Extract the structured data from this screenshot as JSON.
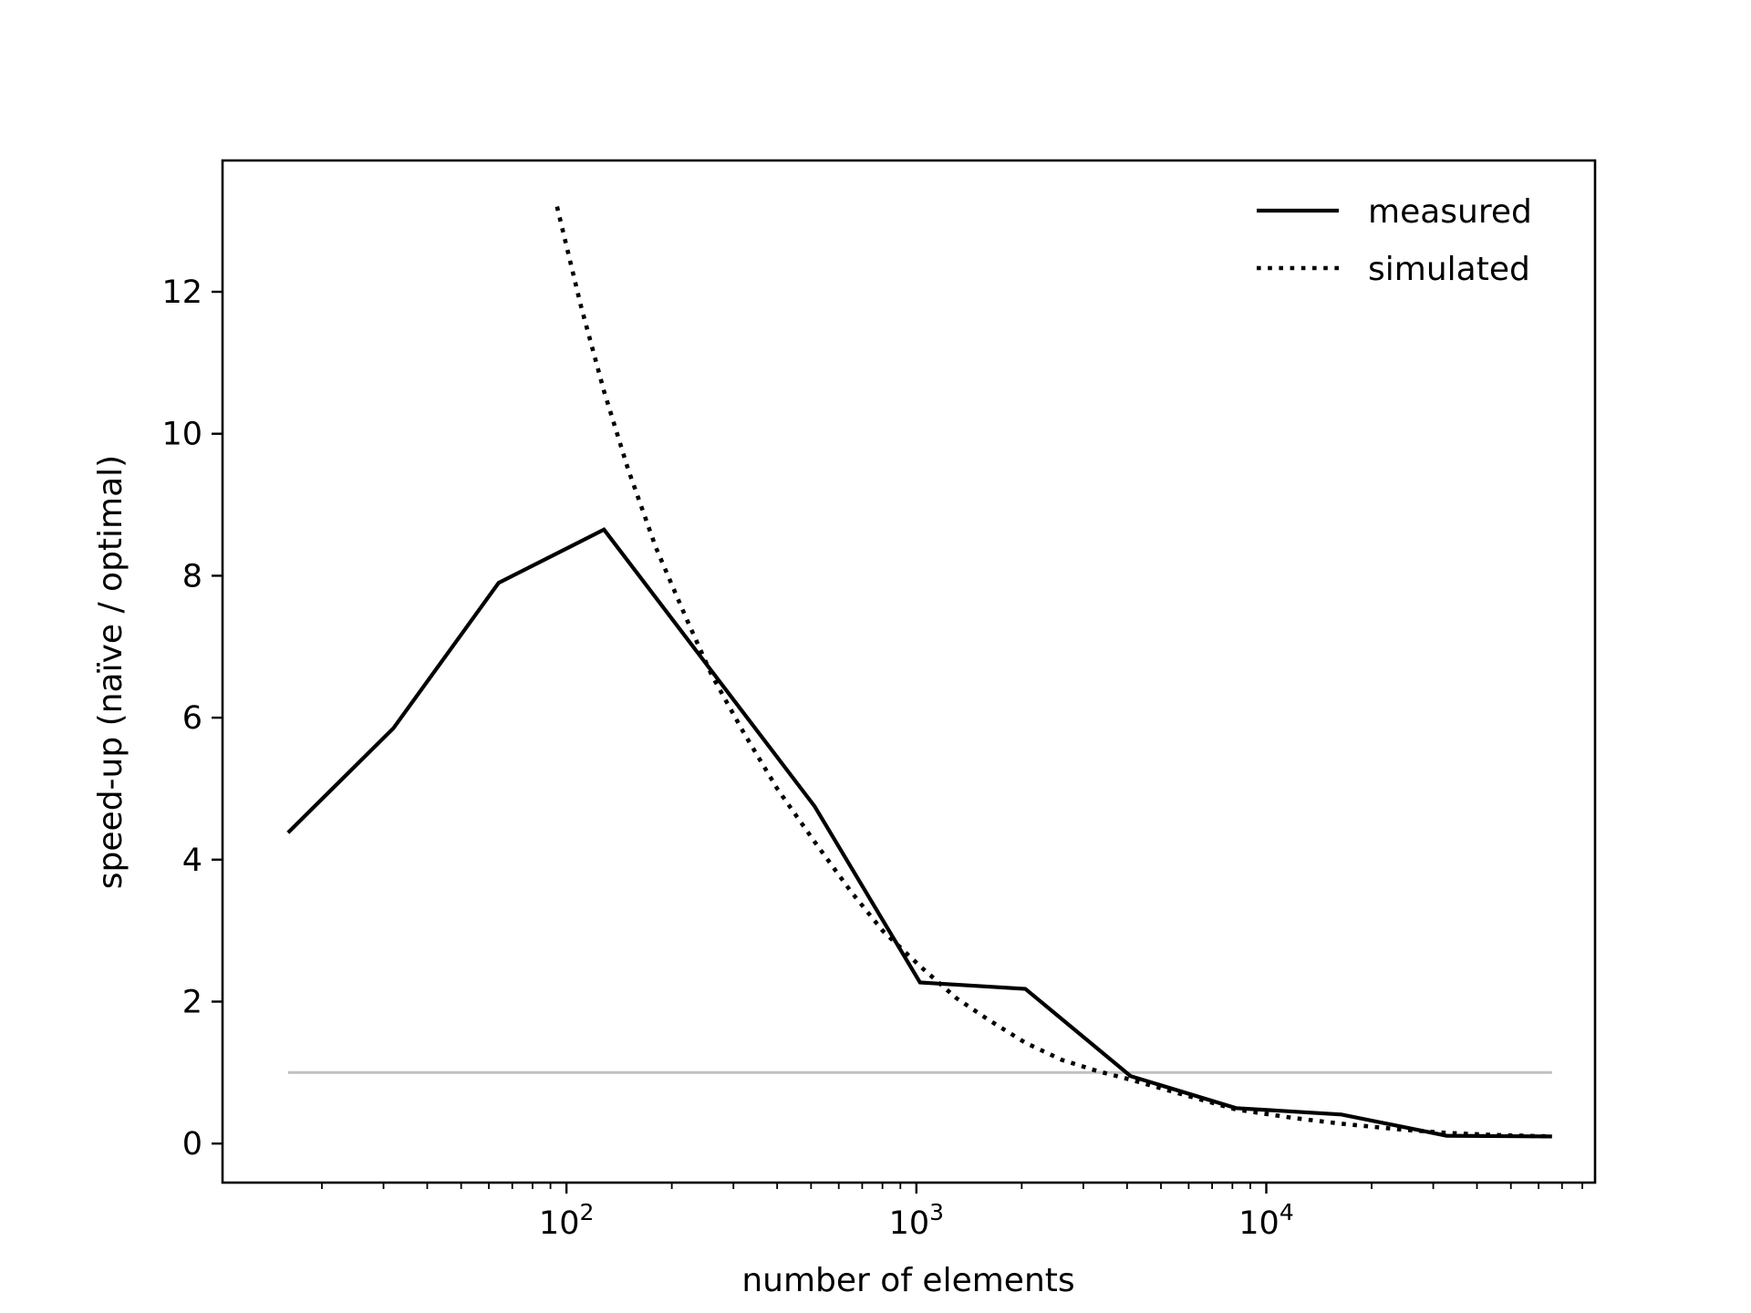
{
  "chart_data": {
    "type": "line",
    "xlabel": "number of elements",
    "ylabel": "speed-up (naïve / optimal)",
    "xscale": "log",
    "xlim": [
      10.4,
      87000
    ],
    "ylim": [
      -0.55,
      13.85
    ],
    "x_ticks": [
      {
        "value": 100,
        "base": "10",
        "exp": "2"
      },
      {
        "value": 1000,
        "base": "10",
        "exp": "3"
      },
      {
        "value": 10000,
        "base": "10",
        "exp": "4"
      }
    ],
    "y_ticks": [
      {
        "value": 0,
        "label": "0"
      },
      {
        "value": 2,
        "label": "2"
      },
      {
        "value": 4,
        "label": "4"
      },
      {
        "value": 6,
        "label": "6"
      },
      {
        "value": 8,
        "label": "8"
      },
      {
        "value": 10,
        "label": "10"
      },
      {
        "value": 12,
        "label": "12"
      }
    ],
    "grid": false,
    "legend_position": "top-right",
    "series": [
      {
        "name": "measured",
        "style": "solid",
        "color": "#000000",
        "x": [
          16,
          32,
          64,
          128,
          256,
          512,
          1024,
          2048,
          4096,
          8192,
          16384,
          32768,
          65536
        ],
        "y": [
          4.38,
          5.85,
          7.9,
          8.65,
          6.7,
          4.75,
          2.27,
          2.18,
          0.95,
          0.5,
          0.41,
          0.11,
          0.1
        ]
      },
      {
        "name": "simulated",
        "style": "dotted",
        "color": "#000000",
        "x": [
          94,
          110,
          128,
          150,
          180,
          220,
          260,
          320,
          400,
          512,
          650,
          800,
          1024,
          1300,
          1600,
          2048,
          2600,
          3300,
          4096,
          5500,
          8192,
          12000,
          16384,
          24000,
          32768,
          45000,
          65536
        ],
        "y": [
          13.2,
          11.8,
          10.6,
          9.5,
          8.4,
          7.4,
          6.6,
          5.8,
          5.0,
          4.25,
          3.55,
          3.0,
          2.5,
          2.05,
          1.75,
          1.42,
          1.18,
          1.02,
          0.9,
          0.72,
          0.48,
          0.36,
          0.28,
          0.2,
          0.15,
          0.12,
          0.1
        ]
      },
      {
        "name": "",
        "style": "solid",
        "color": "#bfbfbf",
        "x": [
          16,
          65536
        ],
        "y": [
          1,
          1
        ]
      }
    ]
  }
}
